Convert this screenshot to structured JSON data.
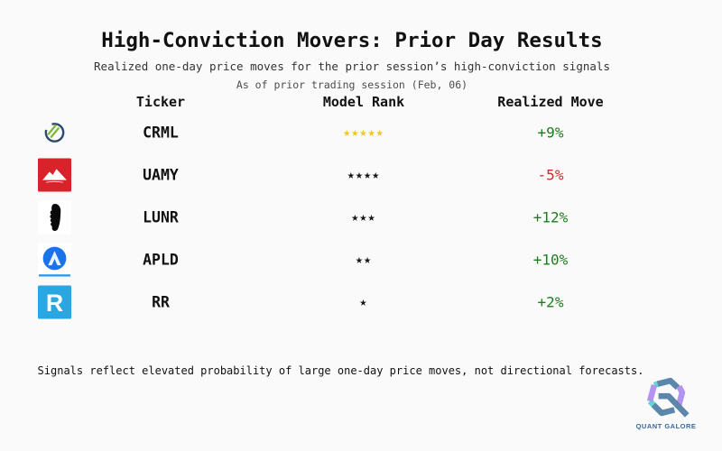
{
  "header": {
    "title": "High-Conviction Movers: Prior Day Results",
    "subtitle": "Realized one-day price moves for the prior session’s high-conviction signals",
    "as_of": "As of prior trading session (Feb, 06)"
  },
  "table": {
    "columns": {
      "ticker": "Ticker",
      "rank": "Model Rank",
      "move": "Realized Move"
    },
    "rows": [
      {
        "ticker": "CRML",
        "rank": 5,
        "stars": "★★★★★",
        "star_color": "#f2c51d",
        "move": "+9%",
        "move_color": "#1f7d1f",
        "icon": "crml-circle-lines-logo-icon"
      },
      {
        "ticker": "UAMY",
        "rank": 4,
        "stars": "★★★★",
        "star_color": "#141414",
        "move": "-5%",
        "move_color": "#c62f2f",
        "icon": "uamy-red-mountain-logo-icon"
      },
      {
        "ticker": "LUNR",
        "rank": 3,
        "stars": "★★★",
        "star_color": "#141414",
        "move": "+12%",
        "move_color": "#1f7d1f",
        "icon": "lunr-astronaut-logo-icon"
      },
      {
        "ticker": "APLD",
        "rank": 2,
        "stars": "★★",
        "star_color": "#141414",
        "move": "+10%",
        "move_color": "#1f7d1f",
        "icon": "apld-blue-circle-logo-icon"
      },
      {
        "ticker": "RR",
        "rank": 1,
        "stars": "★",
        "star_color": "#141414",
        "move": "+2%",
        "move_color": "#1f7d1f",
        "icon": "rr-blue-square-logo-icon"
      }
    ]
  },
  "footnote": "Signals reflect elevated probability of large one-day price moves, not directional forecasts.",
  "branding": {
    "name": "QUANT GALORE"
  },
  "colors": {
    "background": "#fafafa",
    "positive_move": "#1f7d1f",
    "negative_move": "#c62f2f",
    "gold_stars": "#f2c51d",
    "black_stars": "#141414",
    "brand_blue": "#5d87aa",
    "brand_purple": "#b193f0",
    "brand_teal": "#5fd6cf"
  },
  "chart_data": {
    "type": "table",
    "title": "High-Conviction Movers: Prior Day Results",
    "subtitle": "Realized one-day price moves for the prior session’s high-conviction signals",
    "as_of": "As of prior trading session (Feb, 06)",
    "columns": [
      "Ticker",
      "Model Rank",
      "Realized Move"
    ],
    "rows": [
      {
        "ticker": "CRML",
        "model_rank_stars": 5,
        "realized_move_pct": 9
      },
      {
        "ticker": "UAMY",
        "model_rank_stars": 4,
        "realized_move_pct": -5
      },
      {
        "ticker": "LUNR",
        "model_rank_stars": 3,
        "realized_move_pct": 12
      },
      {
        "ticker": "APLD",
        "model_rank_stars": 2,
        "realized_move_pct": 10
      },
      {
        "ticker": "RR",
        "model_rank_stars": 1,
        "realized_move_pct": 2
      }
    ],
    "note": "Signals reflect elevated probability of large one-day price moves, not directional forecasts."
  }
}
